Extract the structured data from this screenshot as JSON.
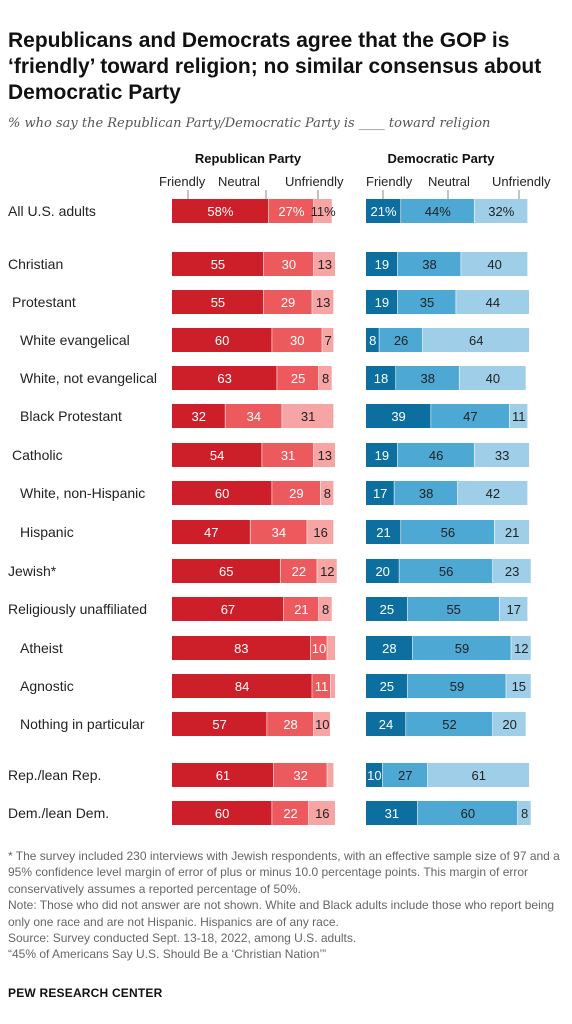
{
  "title": "Republicans and Democrats agree that the GOP is ‘friendly’ toward religion; no similar consensus about Democratic Party",
  "subtitle": "% who say the Republican Party/Democratic Party is ____ toward religion",
  "notes": [
    "* The survey included 230 interviews with Jewish respondents, with an effective sample size of 97 and a 95% confidence level margin of error of plus or minus 10.0 percentage points. This margin of error conservatively assumes a reported percentage of 50%.",
    "Note: Those who did not answer are not shown. White and Black adults include those who report being only one race and are not Hispanic. Hispanics are of any race.",
    "Source: Survey conducted Sept. 13-18, 2022, among U.S. adults.",
    "“45% of Americans Say U.S. Should Be a ‘Christian Nation’”"
  ],
  "footer": "PEW RESEARCH CENTER",
  "colors": {
    "rep": [
      "#cc1f2a",
      "#ec5a5e",
      "#f6a4a4"
    ],
    "dem": [
      "#0c6fa0",
      "#4ea8d4",
      "#9fcfe8"
    ]
  },
  "chart_data": {
    "type": "bar",
    "orientation": "horizontal",
    "stacked": true,
    "legend_labels": [
      "Friendly",
      "Neutral",
      "Unfriendly"
    ],
    "categories": [
      "All U.S. adults",
      "Christian",
      "Protestant",
      "White evangelical",
      "White, not evangelical",
      "Black Protestant",
      "Catholic",
      "White, non-Hispanic",
      "Hispanic",
      "Jewish*",
      "Religiously unaffiliated",
      "Atheist",
      "Agnostic",
      "Nothing in particular",
      "Rep./lean Rep.",
      "Dem./lean Dem."
    ],
    "panels": [
      {
        "title": "Republican Party",
        "friendly": [
          58,
          55,
          55,
          60,
          63,
          32,
          54,
          60,
          47,
          65,
          67,
          83,
          84,
          57,
          61,
          60
        ],
        "neutral": [
          27,
          30,
          29,
          30,
          25,
          34,
          31,
          29,
          34,
          22,
          21,
          10,
          11,
          28,
          32,
          22
        ],
        "unfriendly": [
          11,
          13,
          13,
          7,
          8,
          31,
          13,
          8,
          16,
          12,
          8,
          5,
          3,
          10,
          4,
          16
        ],
        "labels": [
          [
            "58%",
            "27%",
            "11%"
          ],
          [
            "55",
            "30",
            "13"
          ],
          [
            "55",
            "29",
            "13"
          ],
          [
            "60",
            "30",
            "7"
          ],
          [
            "63",
            "25",
            "8"
          ],
          [
            "32",
            "34",
            "31"
          ],
          [
            "54",
            "31",
            "13"
          ],
          [
            "60",
            "29",
            "8"
          ],
          [
            "47",
            "34",
            "16"
          ],
          [
            "65",
            "22",
            "12"
          ],
          [
            "67",
            "21",
            "8"
          ],
          [
            "83",
            "10",
            ""
          ],
          [
            "84",
            "11",
            ""
          ],
          [
            "57",
            "28",
            "10"
          ],
          [
            "61",
            "32",
            ""
          ],
          [
            "60",
            "22",
            "16"
          ]
        ]
      },
      {
        "title": "Democratic Party",
        "friendly": [
          21,
          19,
          19,
          8,
          18,
          39,
          19,
          17,
          21,
          20,
          25,
          28,
          25,
          24,
          10,
          31
        ],
        "neutral": [
          44,
          38,
          35,
          26,
          38,
          47,
          46,
          38,
          56,
          56,
          55,
          59,
          59,
          52,
          27,
          60
        ],
        "unfriendly": [
          32,
          40,
          44,
          64,
          40,
          11,
          33,
          42,
          21,
          23,
          17,
          12,
          15,
          20,
          61,
          8
        ],
        "labels": [
          [
            "21%",
            "44%",
            "32%"
          ],
          [
            "19",
            "38",
            "40"
          ],
          [
            "19",
            "35",
            "44"
          ],
          [
            "8",
            "26",
            "64"
          ],
          [
            "18",
            "38",
            "40"
          ],
          [
            "39",
            "47",
            "11"
          ],
          [
            "19",
            "46",
            "33"
          ],
          [
            "17",
            "38",
            "42"
          ],
          [
            "21",
            "56",
            "21"
          ],
          [
            "20",
            "56",
            "23"
          ],
          [
            "25",
            "55",
            "17"
          ],
          [
            "28",
            "59",
            "12"
          ],
          [
            "25",
            "59",
            "15"
          ],
          [
            "24",
            "52",
            "20"
          ],
          [
            "10",
            "27",
            "61"
          ],
          [
            "31",
            "60",
            "8"
          ]
        ]
      }
    ]
  }
}
